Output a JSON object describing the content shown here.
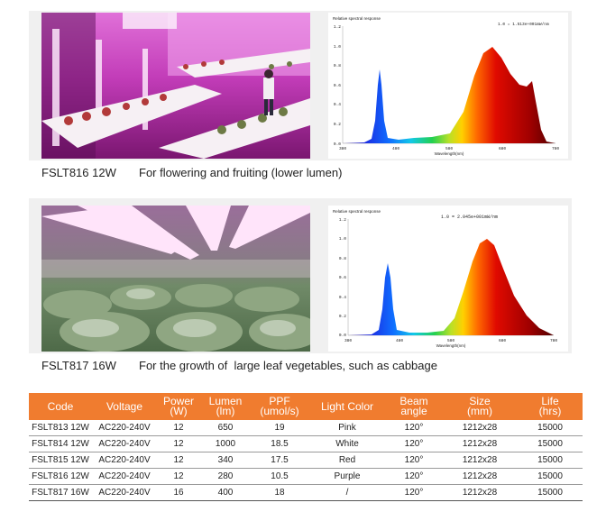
{
  "section1": {
    "code": "FSLT816 12W",
    "description": "For flowering and fruiting (lower lumen)",
    "spectrum": {
      "title": "Relative spectral response",
      "scale_note": "1.0 = 1.513e+001mW/nm",
      "xlabel": "Wavelength(nm)",
      "x_ticks": [
        "380",
        "480",
        "580",
        "680",
        "780"
      ],
      "y_ticks": [
        "0.0",
        "0.2",
        "0.4",
        "0.6",
        "0.8",
        "1.0",
        "1.2"
      ]
    }
  },
  "section2": {
    "code": "FSLT817 16W",
    "description": "For the growth of  large leaf vegetables, such as cabbage",
    "spectrum": {
      "title": "Relative spectral response",
      "scale_note": "1.0 = 2.045e+001mW/nm",
      "xlabel": "Wavelength(nm)",
      "x_ticks": [
        "380",
        "480",
        "580",
        "680",
        "780"
      ],
      "y_ticks": [
        "0.0",
        "0.2",
        "0.4",
        "0.6",
        "0.8",
        "1.0",
        "1.2"
      ]
    }
  },
  "table": {
    "headers": [
      {
        "line1": "Code",
        "line2": ""
      },
      {
        "line1": "Voltage",
        "line2": ""
      },
      {
        "line1": "Power",
        "line2": "(W)"
      },
      {
        "line1": "Lumen",
        "line2": "(lm)"
      },
      {
        "line1": "PPF",
        "line2": "(umol/s)"
      },
      {
        "line1": "Light Color",
        "line2": ""
      },
      {
        "line1": "Beam",
        "line2": "angle"
      },
      {
        "line1": "Size",
        "line2": "(mm)"
      },
      {
        "line1": "Life",
        "line2": "(hrs)"
      }
    ],
    "rows": [
      [
        "FSLT813 12W",
        "AC220-240V",
        "12",
        "650",
        "19",
        "Pink",
        "120°",
        "1212x28",
        "15000"
      ],
      [
        "FSLT814 12W",
        "AC220-240V",
        "12",
        "1000",
        "18.5",
        "White",
        "120°",
        "1212x28",
        "15000"
      ],
      [
        "FSLT815 12W",
        "AC220-240V",
        "12",
        "340",
        "17.5",
        "Red",
        "120°",
        "1212x28",
        "15000"
      ],
      [
        "FSLT816 12W",
        "AC220-240V",
        "12",
        "280",
        "10.5",
        "Purple",
        "120°",
        "1212x28",
        "15000"
      ],
      [
        "FSLT817 16W",
        "AC220-240V",
        "16",
        "400",
        "18",
        "/",
        "120°",
        "1212x28",
        "15000"
      ]
    ]
  },
  "colors": {
    "header_bg": "#f07c2f",
    "header_text": "#ffffff"
  }
}
